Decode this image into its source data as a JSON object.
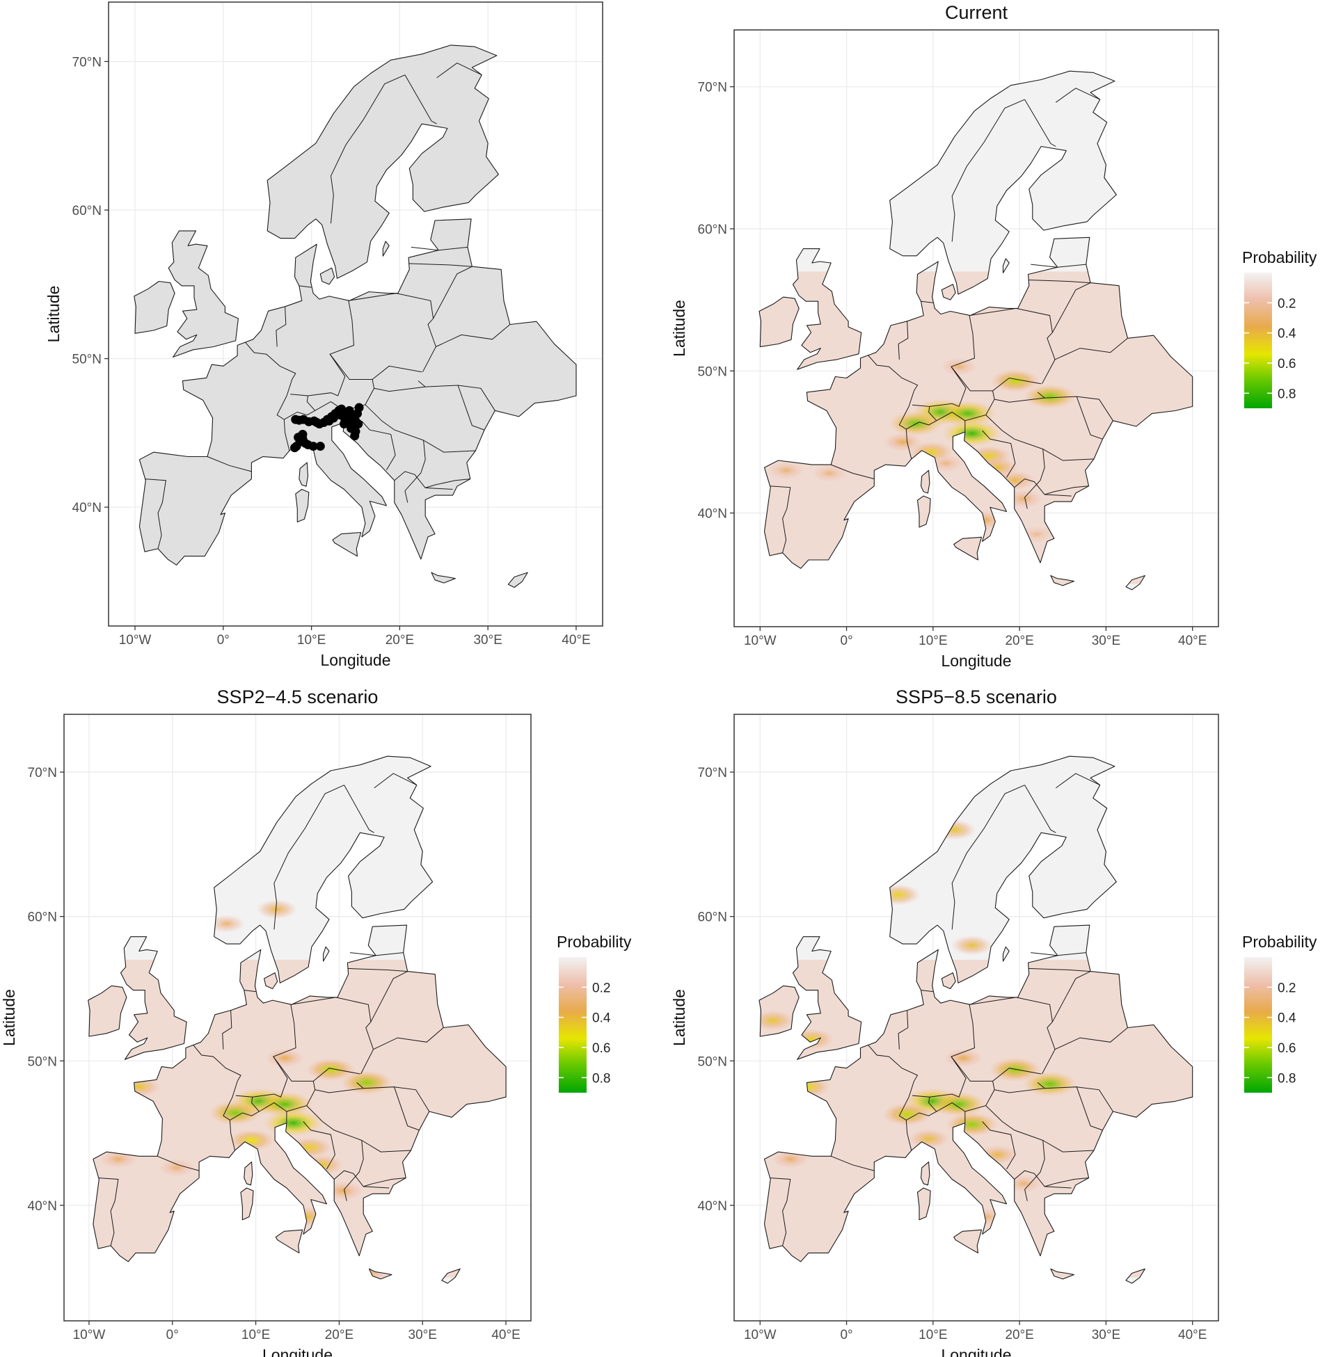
{
  "axes": {
    "x_title": "Longitude",
    "y_title": "Latitude",
    "x_ticks": [
      {
        "value": -10,
        "label": "10°W"
      },
      {
        "value": 0,
        "label": "0°"
      },
      {
        "value": 10,
        "label": "10°E"
      },
      {
        "value": 20,
        "label": "20°E"
      },
      {
        "value": 30,
        "label": "30°E"
      },
      {
        "value": 40,
        "label": "40°E"
      }
    ],
    "y_ticks": [
      {
        "value": 40,
        "label": "40°N"
      },
      {
        "value": 50,
        "label": "50°N"
      },
      {
        "value": 60,
        "label": "60°N"
      },
      {
        "value": 70,
        "label": "70°N"
      }
    ],
    "xlim": [
      -13,
      43
    ],
    "ylim": [
      32,
      74
    ]
  },
  "legend": {
    "title": "Probability",
    "ticks": [
      {
        "value": 0.2,
        "label": "0.2"
      },
      {
        "value": 0.4,
        "label": "0.4"
      },
      {
        "value": 0.6,
        "label": "0.6"
      },
      {
        "value": 0.8,
        "label": "0.8"
      }
    ],
    "range": [
      0.0,
      0.9
    ],
    "colors": [
      "#f2f2f2",
      "#eebfab",
      "#e8aa4b",
      "#e6e600",
      "#63c700",
      "#00a600"
    ]
  },
  "panels": [
    {
      "id": "occurrence",
      "title": "",
      "type": "points",
      "land_color": "#e0e0e0",
      "points": [
        [
          8.2,
          45.9
        ],
        [
          8.6,
          45.85
        ],
        [
          9.1,
          45.9
        ],
        [
          9.7,
          45.75
        ],
        [
          10.3,
          45.8
        ],
        [
          10.9,
          45.6
        ],
        [
          11.4,
          45.7
        ],
        [
          11.8,
          45.9
        ],
        [
          12.3,
          46.1
        ],
        [
          12.7,
          46.3
        ],
        [
          13.1,
          46.5
        ],
        [
          13.4,
          46.6
        ],
        [
          13.6,
          46.2
        ],
        [
          13.9,
          46.4
        ],
        [
          14.2,
          46.1
        ],
        [
          14.4,
          45.7
        ],
        [
          14.7,
          46.0
        ],
        [
          14.8,
          45.4
        ],
        [
          15.0,
          45.8
        ],
        [
          15.2,
          46.3
        ],
        [
          15.3,
          45.6
        ],
        [
          14.5,
          45.3
        ],
        [
          15.4,
          46.7
        ],
        [
          13.8,
          45.9
        ],
        [
          15.0,
          45.1
        ],
        [
          13.7,
          45.6
        ],
        [
          14.9,
          44.8
        ],
        [
          14.3,
          46.5
        ],
        [
          9.0,
          44.6
        ],
        [
          8.7,
          44.4
        ],
        [
          8.3,
          44.1
        ],
        [
          8.1,
          44.0
        ],
        [
          9.3,
          44.3
        ],
        [
          9.6,
          44.2
        ],
        [
          10.2,
          44.1
        ],
        [
          11.0,
          44.1
        ],
        [
          8.5,
          44.7
        ],
        [
          9.0,
          44.9
        ],
        [
          12.0,
          45.8
        ],
        [
          10.6,
          45.7
        ],
        [
          12.5,
          46.0
        ],
        [
          13.3,
          46.2
        ]
      ]
    },
    {
      "id": "current",
      "title": "Current",
      "type": "probability",
      "hotspots": [
        {
          "lon": 11.0,
          "lat": 47.1,
          "prob": 0.72
        },
        {
          "lon": 14.0,
          "lat": 47.0,
          "prob": 0.7
        },
        {
          "lon": 8.0,
          "lat": 46.3,
          "prob": 0.65
        },
        {
          "lon": 14.5,
          "lat": 45.6,
          "prob": 0.75
        },
        {
          "lon": 19.5,
          "lat": 49.3,
          "prob": 0.55
        },
        {
          "lon": 23.5,
          "lat": 48.2,
          "prob": 0.62
        },
        {
          "lon": 9.8,
          "lat": 44.3,
          "prob": 0.45
        },
        {
          "lon": 16.5,
          "lat": 44.0,
          "prob": 0.45
        },
        {
          "lon": 17.5,
          "lat": 43.2,
          "prob": 0.4
        },
        {
          "lon": 19.5,
          "lat": 42.3,
          "prob": 0.38
        },
        {
          "lon": 16.0,
          "lat": 39.5,
          "prob": 0.35
        },
        {
          "lon": -7.0,
          "lat": 43.0,
          "prob": 0.3
        },
        {
          "lon": -2.0,
          "lat": 42.8,
          "prob": 0.28
        },
        {
          "lon": 6.5,
          "lat": 45.0,
          "prob": 0.35
        },
        {
          "lon": 13.0,
          "lat": 50.3,
          "prob": 0.3
        },
        {
          "lon": 20.5,
          "lat": 41.0,
          "prob": 0.32
        },
        {
          "lon": 11.5,
          "lat": 43.5,
          "prob": 0.28
        },
        {
          "lon": 22.0,
          "lat": 38.5,
          "prob": 0.25
        }
      ]
    },
    {
      "id": "ssp245",
      "title": "SSP2−4.5 scenario",
      "type": "probability",
      "hotspots": [
        {
          "lon": 10.5,
          "lat": 47.2,
          "prob": 0.72
        },
        {
          "lon": 13.5,
          "lat": 47.0,
          "prob": 0.68
        },
        {
          "lon": 7.5,
          "lat": 46.4,
          "prob": 0.62
        },
        {
          "lon": 14.5,
          "lat": 45.7,
          "prob": 0.75
        },
        {
          "lon": 19.0,
          "lat": 49.4,
          "prob": 0.55
        },
        {
          "lon": 23.3,
          "lat": 48.5,
          "prob": 0.6
        },
        {
          "lon": 9.5,
          "lat": 44.5,
          "prob": 0.5
        },
        {
          "lon": 16.5,
          "lat": 44.0,
          "prob": 0.45
        },
        {
          "lon": 18.0,
          "lat": 42.8,
          "prob": 0.42
        },
        {
          "lon": 16.2,
          "lat": 39.2,
          "prob": 0.4
        },
        {
          "lon": -4.0,
          "lat": 48.2,
          "prob": 0.42
        },
        {
          "lon": -6.5,
          "lat": 43.2,
          "prob": 0.32
        },
        {
          "lon": 12.5,
          "lat": 60.5,
          "prob": 0.38
        },
        {
          "lon": 6.5,
          "lat": 59.5,
          "prob": 0.3
        },
        {
          "lon": 13.5,
          "lat": 50.2,
          "prob": 0.35
        },
        {
          "lon": 20.5,
          "lat": 41.0,
          "prob": 0.35
        },
        {
          "lon": 23.5,
          "lat": 35.3,
          "prob": 0.35
        },
        {
          "lon": 0.5,
          "lat": 42.6,
          "prob": 0.3
        }
      ]
    },
    {
      "id": "ssp585",
      "title": "SSP5−8.5 scenario",
      "type": "probability",
      "hotspots": [
        {
          "lon": 10.0,
          "lat": 47.2,
          "prob": 0.72
        },
        {
          "lon": 13.0,
          "lat": 47.0,
          "prob": 0.65
        },
        {
          "lon": 7.0,
          "lat": 46.3,
          "prob": 0.55
        },
        {
          "lon": 14.5,
          "lat": 45.6,
          "prob": 0.6
        },
        {
          "lon": 19.5,
          "lat": 49.4,
          "prob": 0.6
        },
        {
          "lon": 23.5,
          "lat": 48.4,
          "prob": 0.65
        },
        {
          "lon": -4.5,
          "lat": 48.2,
          "prob": 0.48
        },
        {
          "lon": -4.0,
          "lat": 51.5,
          "prob": 0.45
        },
        {
          "lon": -8.5,
          "lat": 52.8,
          "prob": 0.42
        },
        {
          "lon": 6.0,
          "lat": 61.5,
          "prob": 0.45
        },
        {
          "lon": 12.5,
          "lat": 66.0,
          "prob": 0.42
        },
        {
          "lon": 14.5,
          "lat": 58.0,
          "prob": 0.4
        },
        {
          "lon": 9.5,
          "lat": 44.6,
          "prob": 0.4
        },
        {
          "lon": 17.5,
          "lat": 43.5,
          "prob": 0.38
        },
        {
          "lon": -6.5,
          "lat": 43.2,
          "prob": 0.32
        },
        {
          "lon": 13.5,
          "lat": 50.2,
          "prob": 0.35
        },
        {
          "lon": 16.2,
          "lat": 39.2,
          "prob": 0.3
        },
        {
          "lon": 20.5,
          "lat": 41.5,
          "prob": 0.3
        }
      ]
    }
  ]
}
